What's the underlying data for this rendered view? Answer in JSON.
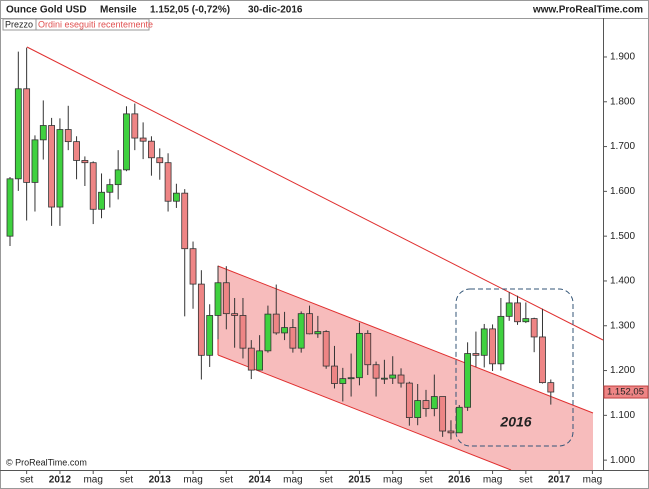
{
  "chart_data": {
    "type": "candlestick",
    "title": "Ounce Gold USD",
    "period": "Mensile",
    "quote": "1.152,05 (-0,72%)",
    "date": "30-dic-2016",
    "source": "www.ProRealTime.com",
    "tabs": [
      "Prezzo",
      "Ordini eseguiti recentemente"
    ],
    "annotation": "2016",
    "copyright": "© ProRealTime.com",
    "up_color": "#3fd13f",
    "down_color": "#ee8585",
    "categories": [
      null,
      null,
      "set",
      null,
      null,
      null,
      "2012",
      null,
      null,
      null,
      "mag",
      null,
      null,
      null,
      "set",
      null,
      null,
      null,
      "2013",
      null,
      null,
      null,
      "mag",
      null,
      null,
      null,
      "set",
      null,
      null,
      null,
      "2014",
      null,
      null,
      null,
      "mag",
      null,
      null,
      null,
      "set",
      null,
      null,
      null,
      "2015",
      null,
      null,
      null,
      "mag",
      null,
      null,
      null,
      "set",
      null,
      null,
      null,
      "2016",
      null,
      null,
      null,
      "mag",
      null,
      null,
      null,
      "set",
      null,
      null,
      null,
      "2017",
      null,
      null,
      null,
      "mag"
    ],
    "open": [
      1500,
      1628,
      1829,
      1620,
      1715,
      1747,
      1565,
      1738,
      1711,
      1669,
      1664,
      1560,
      1598,
      1615,
      1648,
      1773,
      1719,
      1712,
      1675,
      1664,
      1578,
      1596,
      1472,
      1393,
      1234,
      1323,
      1396,
      1327,
      1323,
      1250,
      1201,
      1244,
      1326,
      1284,
      1296,
      1250,
      1327,
      1282,
      1287,
      1210,
      1171,
      1182,
      1184,
      1283,
      1213,
      1183,
      1183,
      1190,
      1172,
      1095,
      1133,
      1115,
      1142,
      1065,
      1061,
      1118,
      1238,
      1234,
      1293,
      1215,
      1321,
      1351,
      1309,
      1316,
      1275,
      1173,
      null,
      null,
      null,
      null,
      null
    ],
    "high": [
      1632,
      1912,
      1921,
      1725,
      1803,
      1764,
      1763,
      1791,
      1723,
      1678,
      1667,
      1640,
      1628,
      1692,
      1790,
      1796,
      1754,
      1723,
      1696,
      1685,
      1617,
      1605,
      1488,
      1424,
      1348,
      1434,
      1433,
      1362,
      1362,
      1268,
      1279,
      1345,
      1392,
      1331,
      1315,
      1332,
      1345,
      1322,
      1290,
      1255,
      1206,
      1238,
      1307,
      1290,
      1220,
      1224,
      1232,
      1205,
      1175,
      1170,
      1157,
      1191,
      1142,
      1089,
      1123,
      1263,
      1287,
      1304,
      1303,
      1362,
      1375,
      1367,
      1352,
      1318,
      1338,
      1180,
      null,
      null,
      null,
      null,
      null
    ],
    "low": [
      1478,
      1601,
      1535,
      1555,
      1671,
      1523,
      1523,
      1692,
      1627,
      1612,
      1527,
      1540,
      1564,
      1582,
      1645,
      1692,
      1672,
      1635,
      1626,
      1555,
      1563,
      1321,
      1338,
      1180,
      1208,
      1270,
      1292,
      1251,
      1227,
      1181,
      1200,
      1240,
      1280,
      1268,
      1240,
      1240,
      1281,
      1273,
      1204,
      1160,
      1131,
      1142,
      1167,
      1190,
      1142,
      1170,
      1170,
      1162,
      1077,
      1078,
      1097,
      1098,
      1052,
      1046,
      1062,
      1110,
      1208,
      1207,
      1199,
      1200,
      1311,
      1302,
      1306,
      1241,
      1171,
      1124,
      null,
      null,
      null,
      null,
      null
    ],
    "close": [
      1628,
      1829,
      1620,
      1715,
      1747,
      1565,
      1738,
      1711,
      1669,
      1664,
      1560,
      1598,
      1615,
      1648,
      1773,
      1719,
      1712,
      1675,
      1664,
      1578,
      1596,
      1472,
      1393,
      1234,
      1323,
      1396,
      1327,
      1323,
      1250,
      1201,
      1244,
      1326,
      1284,
      1296,
      1250,
      1327,
      1282,
      1287,
      1210,
      1171,
      1182,
      1184,
      1283,
      1213,
      1183,
      1183,
      1190,
      1172,
      1095,
      1133,
      1115,
      1142,
      1065,
      1061,
      1118,
      1238,
      1234,
      1293,
      1215,
      1321,
      1351,
      1309,
      1316,
      1275,
      1173,
      1152.05,
      null,
      null,
      null,
      null,
      null
    ],
    "last_price": {
      "value": 1152.05,
      "label": "1.152,05"
    },
    "ylim": [
      978,
      1987
    ],
    "yticks": [
      {
        "value": 1000,
        "label": "1.000"
      },
      {
        "value": 1100,
        "label": "1.100"
      },
      {
        "value": 1200,
        "label": "1.200"
      },
      {
        "value": 1300,
        "label": "1.300"
      },
      {
        "value": 1400,
        "label": "1.400"
      },
      {
        "value": 1500,
        "label": "1.500"
      },
      {
        "value": 1600,
        "label": "1.600"
      },
      {
        "value": 1700,
        "label": "1.700"
      },
      {
        "value": 1800,
        "label": "1.800"
      },
      {
        "value": 1900,
        "label": "1.900"
      }
    ]
  }
}
